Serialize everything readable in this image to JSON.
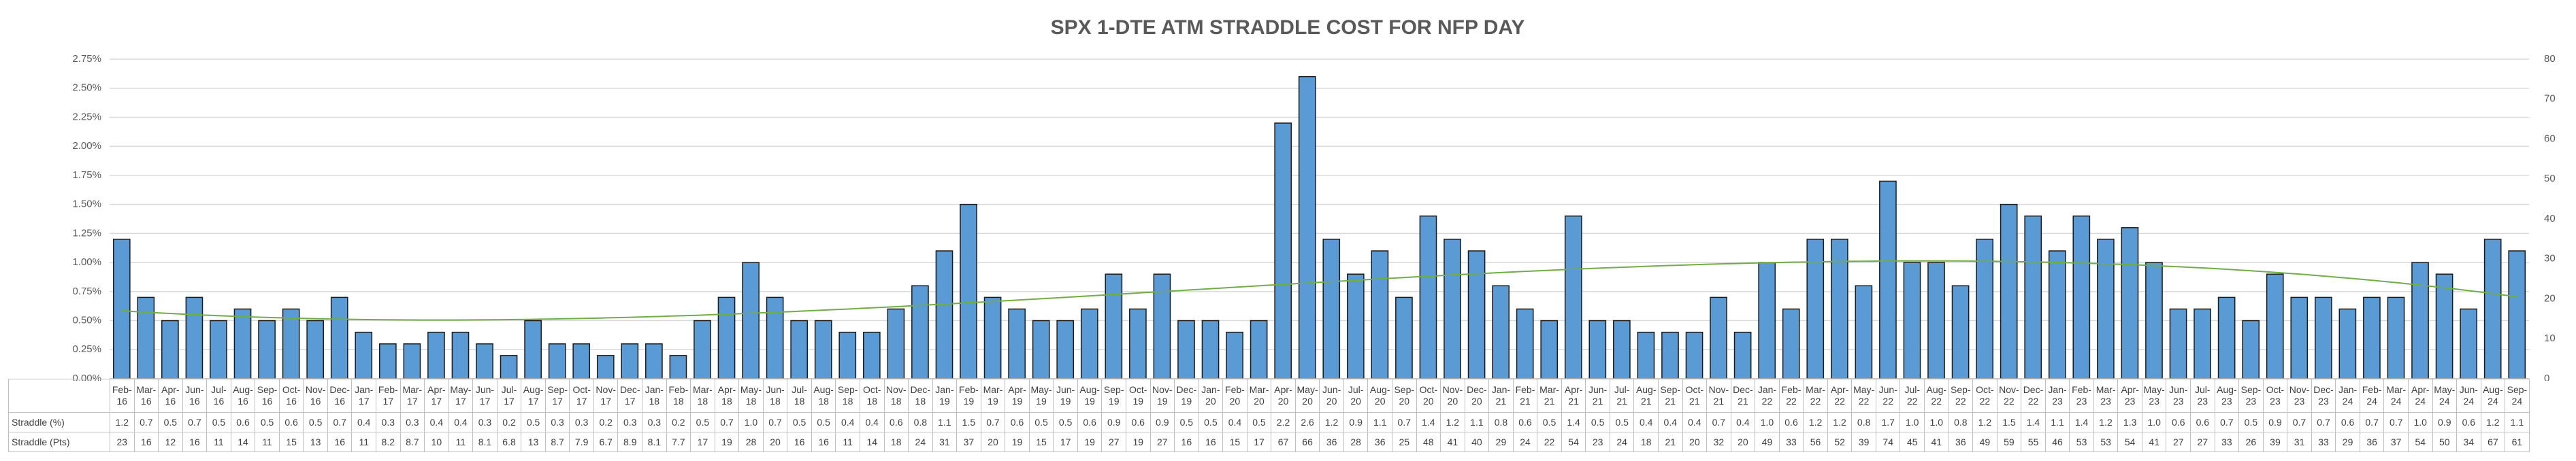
{
  "chart_data": {
    "type": "bar",
    "title": "SPX 1-DTE ATM STRADDLE COST FOR NFP DAY",
    "categories": [
      "Feb-16",
      "Mar-16",
      "Apr-16",
      "Jun-16",
      "Jul-16",
      "Aug-16",
      "Sep-16",
      "Oct-16",
      "Nov-16",
      "Dec-16",
      "Jan-17",
      "Feb-17",
      "Mar-17",
      "Apr-17",
      "May-17",
      "Jun-17",
      "Jul-17",
      "Aug-17",
      "Sep-17",
      "Oct-17",
      "Nov-17",
      "Dec-17",
      "Jan-18",
      "Feb-18",
      "Mar-18",
      "Apr-18",
      "May-18",
      "Jun-18",
      "Jul-18",
      "Aug-18",
      "Sep-18",
      "Oct-18",
      "Nov-18",
      "Dec-18",
      "Jan-19",
      "Feb-19",
      "Mar-19",
      "Apr-19",
      "May-19",
      "Jun-19",
      "Aug-19",
      "Sep-19",
      "Oct-19",
      "Nov-19",
      "Dec-19",
      "Jan-20",
      "Feb-20",
      "Mar-20",
      "Apr-20",
      "May-20",
      "Jun-20",
      "Jul-20",
      "Aug-20",
      "Sep-20",
      "Oct-20",
      "Nov-20",
      "Dec-20",
      "Jan-21",
      "Feb-21",
      "Mar-21",
      "Apr-21",
      "Jun-21",
      "Jul-21",
      "Aug-21",
      "Sep-21",
      "Oct-21",
      "Nov-21",
      "Dec-21",
      "Jan-22",
      "Feb-22",
      "Mar-22",
      "Apr-22",
      "May-22",
      "Jun-22",
      "Jul-22",
      "Aug-22",
      "Sep-22",
      "Oct-22",
      "Nov-22",
      "Dec-22",
      "Jan-23",
      "Feb-23",
      "Mar-23",
      "Apr-23",
      "May-23",
      "Jun-23",
      "Jul-23",
      "Aug-23",
      "Sep-23",
      "Oct-23",
      "Nov-23",
      "Dec-23",
      "Jan-24",
      "Feb-24",
      "Mar-24",
      "Apr-24",
      "May-24",
      "Jun-24",
      "Aug-24",
      "Sep-24"
    ],
    "series": [
      {
        "name": "Straddle (%)",
        "color": "#5b9bd5",
        "values": [
          1.2,
          0.7,
          0.5,
          0.7,
          0.5,
          0.6,
          0.5,
          0.6,
          0.5,
          0.7,
          0.4,
          0.3,
          0.3,
          0.4,
          0.4,
          0.3,
          0.2,
          0.5,
          0.3,
          0.3,
          0.2,
          0.3,
          0.3,
          0.2,
          0.5,
          0.7,
          1.0,
          0.7,
          0.5,
          0.5,
          0.4,
          0.4,
          0.6,
          0.8,
          1.1,
          1.5,
          0.7,
          0.6,
          0.5,
          0.5,
          0.6,
          0.9,
          0.6,
          0.9,
          0.5,
          0.5,
          0.4,
          0.5,
          2.2,
          2.6,
          1.2,
          0.9,
          1.1,
          0.7,
          1.4,
          1.2,
          1.1,
          0.8,
          0.6,
          0.5,
          1.4,
          0.5,
          0.5,
          0.4,
          0.4,
          0.4,
          0.7,
          0.4,
          1.0,
          0.6,
          1.2,
          1.2,
          0.8,
          1.7,
          1.0,
          1.0,
          0.8,
          1.2,
          1.5,
          1.4,
          1.1,
          1.4,
          1.2,
          1.3,
          1.0,
          0.6,
          0.6,
          0.7,
          0.5,
          0.9,
          0.7,
          0.7,
          0.6,
          0.7,
          0.7,
          1.0,
          0.9,
          0.6,
          1.2,
          1.1
        ],
        "value_labels": [
          "1.2",
          "0.7",
          "0.5",
          "0.7",
          "0.5",
          "0.6",
          "0.5",
          "0.6",
          "0.5",
          "0.7",
          "0.4",
          "0.3",
          "0.3",
          "0.4",
          "0.4",
          "0.3",
          "0.2",
          "0.5",
          "0.3",
          "0.3",
          "0.2",
          "0.3",
          "0.3",
          "0.2",
          "0.5",
          "0.7",
          "1.0",
          "0.7",
          "0.5",
          "0.5",
          "0.4",
          "0.4",
          "0.6",
          "0.8",
          "1.1",
          "1.5",
          "0.7",
          "0.6",
          "0.5",
          "0.5",
          "0.6",
          "0.9",
          "0.6",
          "0.9",
          "0.5",
          "0.5",
          "0.4",
          "0.5",
          "2.2",
          "2.6",
          "1.2",
          "0.9",
          "1.1",
          "0.7",
          "1.4",
          "1.2",
          "1.1",
          "0.8",
          "0.6",
          "0.5",
          "1.4",
          "0.5",
          "0.5",
          "0.4",
          "0.4",
          "0.4",
          "0.7",
          "0.4",
          "1.0",
          "0.6",
          "1.2",
          "1.2",
          "0.8",
          "1.7",
          "1.0",
          "1.0",
          "0.8",
          "1.2",
          "1.5",
          "1.4",
          "1.1",
          "1.4",
          "1.2",
          "1.3",
          "1.0",
          "0.6",
          "0.6",
          "0.7",
          "0.5",
          "0.9",
          "0.7",
          "0.7",
          "0.6",
          "0.7",
          "0.7",
          "1.0",
          "0.9",
          "0.6",
          "1.2",
          "1.1"
        ]
      },
      {
        "name": "Straddle (Pts)",
        "axis": "y2",
        "values": [
          23,
          16,
          12,
          16,
          11,
          14,
          11,
          15,
          13,
          16,
          11,
          8.2,
          8.7,
          10,
          11,
          8.1,
          6.8,
          13,
          8.7,
          7.9,
          6.7,
          8.9,
          8.1,
          7.7,
          17,
          19,
          28,
          20,
          16,
          16,
          11,
          14,
          18,
          24,
          31,
          37,
          20,
          19,
          15,
          17,
          19,
          27,
          19,
          27,
          16,
          16,
          15,
          17,
          67,
          66,
          36,
          28,
          36,
          25,
          48,
          41,
          40,
          29,
          24,
          22,
          54,
          23,
          24,
          18,
          21,
          20,
          32,
          20,
          49,
          33,
          56,
          52,
          39,
          74,
          45,
          41,
          36,
          49,
          59,
          55,
          46,
          53,
          53,
          54,
          41,
          27,
          27,
          33,
          26,
          39,
          31,
          33,
          29,
          36,
          37,
          54,
          50,
          34,
          67,
          61
        ]
      }
    ],
    "ylim": [
      0,
      2.75
    ],
    "yticks": [
      {
        "value": 0,
        "label": "0.00%"
      },
      {
        "value": 0.25,
        "label": "0.25%"
      },
      {
        "value": 0.5,
        "label": "0.50%"
      },
      {
        "value": 0.75,
        "label": "0.75%"
      },
      {
        "value": 1,
        "label": "1.00%"
      },
      {
        "value": 1.25,
        "label": "1.25%"
      },
      {
        "value": 1.5,
        "label": "1.50%"
      },
      {
        "value": 1.75,
        "label": "1.75%"
      },
      {
        "value": 2,
        "label": "2.00%"
      },
      {
        "value": 2.25,
        "label": "2.25%"
      },
      {
        "value": 2.5,
        "label": "2.50%"
      },
      {
        "value": 2.75,
        "label": "2.75%"
      }
    ],
    "y2lim": [
      0,
      80
    ],
    "y2ticks": [
      0,
      10,
      20,
      30,
      40,
      50,
      60,
      70,
      80
    ],
    "grid": true,
    "trendline": {
      "type": "polynomial",
      "order": 3,
      "color": "#70ad47"
    },
    "data_table": true
  }
}
